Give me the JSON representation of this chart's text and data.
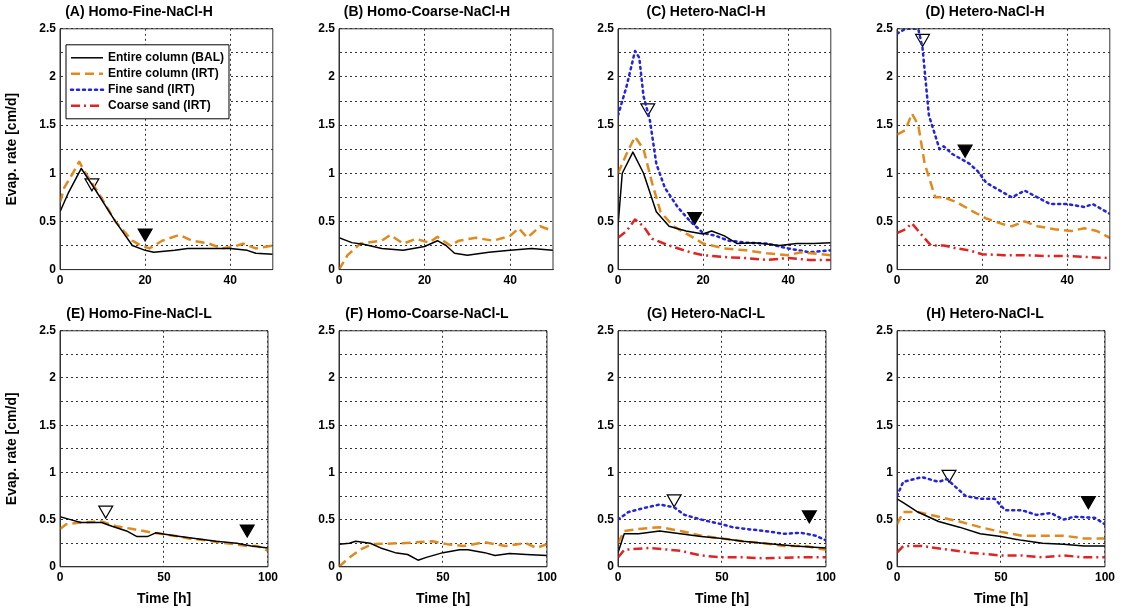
{
  "chart_data": [
    {
      "type": "line",
      "title": "(A) Homo-Fine-NaCl-H",
      "ylabel": "Evap. rate [cm/d]",
      "xlim": [
        0,
        50
      ],
      "xticks": [
        0,
        20,
        40
      ],
      "ylim": [
        0,
        2.5
      ],
      "yticks": [
        0,
        {
          "value": 0.25,
          "label": null
        },
        0.5,
        {
          "value": 0.75,
          "label": null
        },
        1,
        {
          "value": 1.25,
          "label": null
        },
        1.5,
        {
          "value": 1.75,
          "label": null
        },
        2,
        {
          "value": 2.25,
          "label": null
        },
        2.5
      ],
      "grid": true,
      "legend": "top left",
      "marker": "none",
      "series": [
        {
          "name": "Entire column (BAL)",
          "color": "#000000",
          "line_style": "solid",
          "x": [
            0,
            2,
            5,
            8,
            13,
            17,
            20,
            22,
            27,
            30,
            35,
            40,
            44,
            46,
            50
          ],
          "values": [
            0.6,
            0.8,
            1.05,
            0.85,
            0.5,
            0.25,
            0.2,
            0.18,
            0.2,
            0.22,
            0.22,
            0.22,
            0.2,
            0.17,
            0.16
          ]
        },
        {
          "name": "Entire column (IRT)",
          "color": "#e08a1e",
          "line_style": "dashed",
          "x": [
            0,
            1,
            3,
            4.5,
            6,
            9,
            13,
            17,
            19,
            21,
            24,
            28,
            31,
            35,
            38,
            41,
            43,
            46,
            50
          ],
          "values": [
            0.7,
            0.85,
            1.0,
            1.12,
            1.0,
            0.8,
            0.5,
            0.3,
            0.25,
            0.22,
            0.3,
            0.36,
            0.3,
            0.27,
            0.22,
            0.24,
            0.27,
            0.22,
            0.25
          ]
        },
        {
          "name": "Fine sand (IRT)",
          "color": "#2323e0",
          "line_style": "dotted"
        },
        {
          "name": "Coarse sand (IRT)",
          "color": "#e02323",
          "line_style": "dashdot"
        },
        {
          "type": "scatter",
          "marker": "triangle",
          "color": "#ffffff",
          "x": [
            7.5
          ],
          "values": [
            0.9
          ]
        },
        {
          "type": "scatter",
          "marker": "triangle",
          "color": "#000000",
          "x": [
            20
          ],
          "values": [
            0.38
          ]
        }
      ]
    },
    {
      "type": "line",
      "title": "(B) Homo-Coarse-NaCl-H",
      "xlim": [
        0,
        50
      ],
      "xticks": [
        0,
        20,
        40
      ],
      "ylim": [
        0,
        2.5
      ],
      "yticks": [
        0,
        {
          "value": 0.25,
          "label": null
        },
        0.5,
        {
          "value": 0.75,
          "label": null
        },
        1,
        {
          "value": 1.25,
          "label": null
        },
        1.5,
        {
          "value": 1.75,
          "label": null
        },
        2,
        {
          "value": 2.25,
          "label": null
        },
        2.5
      ],
      "grid": true,
      "marker": "none",
      "series": [
        {
          "color": "#000000",
          "line_style": "solid",
          "x": [
            0,
            3,
            6,
            10,
            15,
            20,
            23,
            25,
            27,
            30,
            35,
            40,
            45,
            50
          ],
          "values": [
            0.33,
            0.28,
            0.26,
            0.22,
            0.2,
            0.24,
            0.3,
            0.25,
            0.17,
            0.15,
            0.18,
            0.2,
            0.22,
            0.2
          ]
        },
        {
          "color": "#e08a1e",
          "line_style": "dashed",
          "x": [
            0,
            2,
            5,
            10,
            12,
            15,
            18,
            21,
            23,
            26,
            28,
            32,
            36,
            40,
            42,
            44,
            47,
            50
          ],
          "values": [
            0,
            0.15,
            0.27,
            0.3,
            0.36,
            0.27,
            0.32,
            0.28,
            0.34,
            0.25,
            0.3,
            0.33,
            0.3,
            0.35,
            0.43,
            0.33,
            0.45,
            0.4
          ]
        }
      ]
    },
    {
      "type": "line",
      "title": "(C) Hetero-NaCl-H",
      "xlim": [
        0,
        50
      ],
      "xticks": [
        0,
        20,
        40
      ],
      "ylim": [
        0,
        2.5
      ],
      "yticks": [
        0,
        {
          "value": 0.25,
          "label": null
        },
        0.5,
        {
          "value": 0.75,
          "label": null
        },
        1,
        {
          "value": 1.25,
          "label": null
        },
        1.5,
        {
          "value": 1.75,
          "label": null
        },
        2,
        {
          "value": 2.25,
          "label": null
        },
        2.5
      ],
      "grid": true,
      "marker": "none",
      "series": [
        {
          "color": "#000000",
          "line_style": "solid",
          "x": [
            0,
            1,
            3.5,
            6,
            9,
            12,
            16,
            20,
            22,
            25,
            28,
            32,
            38,
            42,
            46,
            50
          ],
          "values": [
            0.45,
            1.0,
            1.22,
            1.0,
            0.6,
            0.45,
            0.4,
            0.37,
            0.4,
            0.35,
            0.27,
            0.28,
            0.25,
            0.27,
            0.27,
            0.28
          ]
        },
        {
          "color": "#e08a1e",
          "line_style": "dashed",
          "x": [
            0,
            2,
            4,
            6,
            8,
            10,
            13,
            17,
            20,
            25,
            30,
            35,
            40,
            43,
            50
          ],
          "values": [
            1.0,
            1.2,
            1.38,
            1.25,
            0.9,
            0.6,
            0.45,
            0.35,
            0.27,
            0.22,
            0.2,
            0.17,
            0.15,
            0.18,
            0.15
          ]
        },
        {
          "color": "#2323e0",
          "line_style": "dotted",
          "x": [
            0,
            2,
            4,
            5,
            6,
            7.5,
            9,
            11,
            14,
            17,
            20,
            23,
            26,
            30,
            35,
            40,
            45,
            50
          ],
          "values": [
            1.6,
            1.9,
            2.27,
            2.2,
            1.8,
            1.55,
            1.1,
            0.85,
            0.65,
            0.5,
            0.38,
            0.35,
            0.3,
            0.28,
            0.27,
            0.22,
            0.18,
            0.2
          ]
        },
        {
          "color": "#e02323",
          "line_style": "dashdot",
          "x": [
            0,
            2,
            4,
            6,
            8,
            12,
            17,
            20,
            25,
            30,
            35,
            40,
            45,
            50
          ],
          "values": [
            0.33,
            0.4,
            0.52,
            0.45,
            0.32,
            0.25,
            0.18,
            0.15,
            0.13,
            0.12,
            0.1,
            0.12,
            0.1,
            0.1
          ]
        },
        {
          "type": "scatter",
          "marker": "triangle",
          "color": "#ffffff",
          "x": [
            7
          ],
          "values": [
            1.68
          ]
        },
        {
          "type": "scatter",
          "marker": "triangle",
          "color": "#000000",
          "x": [
            18
          ],
          "values": [
            0.55
          ]
        }
      ]
    },
    {
      "type": "line",
      "title": "(D) Hetero-NaCl-H",
      "xlim": [
        0,
        50
      ],
      "xticks": [
        0,
        20,
        40
      ],
      "ylim": [
        0,
        2.5
      ],
      "yticks": [
        0,
        {
          "value": 0.25,
          "label": null
        },
        0.5,
        {
          "value": 0.75,
          "label": null
        },
        1,
        {
          "value": 1.25,
          "label": null
        },
        1.5,
        {
          "value": 1.75,
          "label": null
        },
        2,
        {
          "value": 2.25,
          "label": null
        },
        2.5
      ],
      "grid": true,
      "marker": "none",
      "series": [
        {
          "color": "#e08a1e",
          "line_style": "dashed",
          "x": [
            0,
            2,
            3.5,
            5,
            6.5,
            9,
            11,
            14,
            18,
            21,
            25,
            27,
            30,
            33,
            37,
            41,
            44,
            47,
            50
          ],
          "values": [
            1.4,
            1.45,
            1.62,
            1.5,
            1.1,
            0.75,
            0.75,
            0.7,
            0.6,
            0.53,
            0.47,
            0.45,
            0.5,
            0.45,
            0.42,
            0.4,
            0.43,
            0.4,
            0.33
          ]
        },
        {
          "color": "#2323e0",
          "line_style": "dotted",
          "x": [
            0,
            2,
            5,
            6,
            7.5,
            10,
            11,
            13,
            17,
            19,
            21,
            25,
            27,
            30,
            33,
            36,
            40,
            44,
            46,
            50
          ],
          "values": [
            2.45,
            2.5,
            2.5,
            2.3,
            1.6,
            1.25,
            1.28,
            1.2,
            1.1,
            1.02,
            0.9,
            0.8,
            0.75,
            0.82,
            0.75,
            0.68,
            0.68,
            0.65,
            0.68,
            0.58
          ]
        },
        {
          "color": "#e02323",
          "line_style": "dashdot",
          "x": [
            0,
            2,
            3.5,
            6,
            8,
            11,
            14,
            17,
            20,
            25,
            30,
            35,
            40,
            45,
            50
          ],
          "values": [
            0.38,
            0.42,
            0.48,
            0.35,
            0.25,
            0.25,
            0.22,
            0.2,
            0.16,
            0.15,
            0.15,
            0.14,
            0.14,
            0.13,
            0.12
          ]
        },
        {
          "type": "scatter",
          "marker": "triangle",
          "color": "#ffffff",
          "x": [
            6
          ],
          "values": [
            2.4
          ]
        },
        {
          "type": "scatter",
          "marker": "triangle",
          "color": "#000000",
          "x": [
            16
          ],
          "values": [
            1.25
          ]
        }
      ]
    },
    {
      "type": "line",
      "title": "(E) Homo-Fine-NaCl-L",
      "ylabel": "Evap. rate [cm/d]",
      "xlabel": "Time [h]",
      "xlim": [
        0,
        100
      ],
      "xticks": [
        0,
        50,
        100
      ],
      "ylim": [
        0,
        2.5
      ],
      "yticks": [
        0,
        {
          "value": 0.25,
          "label": null
        },
        0.5,
        {
          "value": 0.75,
          "label": null
        },
        1,
        {
          "value": 1.25,
          "label": null
        },
        1.5,
        {
          "value": 1.75,
          "label": null
        },
        2,
        {
          "value": 2.25,
          "label": null
        },
        2.5
      ],
      "grid": true,
      "marker": "none",
      "series": [
        {
          "color": "#000000",
          "line_style": "solid",
          "x": [
            0,
            5,
            10,
            20,
            25,
            32,
            37,
            42,
            46,
            55,
            65,
            75,
            85,
            92,
            100
          ],
          "values": [
            0.53,
            0.5,
            0.47,
            0.47,
            0.43,
            0.38,
            0.32,
            0.32,
            0.36,
            0.33,
            0.3,
            0.27,
            0.25,
            0.22,
            0.2
          ]
        },
        {
          "color": "#e08a1e",
          "line_style": "dashed",
          "x": [
            0,
            3,
            10,
            20,
            27,
            35,
            45,
            55,
            62,
            70,
            80,
            90,
            95,
            100
          ],
          "values": [
            0.4,
            0.45,
            0.47,
            0.48,
            0.43,
            0.4,
            0.36,
            0.33,
            0.3,
            0.28,
            0.25,
            0.22,
            0.22,
            0.17
          ]
        },
        {
          "type": "scatter",
          "marker": "triangle",
          "color": "#ffffff",
          "x": [
            22
          ],
          "values": [
            0.6
          ]
        },
        {
          "type": "scatter",
          "marker": "triangle",
          "color": "#000000",
          "x": [
            90
          ],
          "values": [
            0.4
          ]
        }
      ]
    },
    {
      "type": "line",
      "title": "(F) Homo-Coarse-NaCl-L",
      "xlabel": "Time [h]",
      "xlim": [
        0,
        100
      ],
      "xticks": [
        0,
        50,
        100
      ],
      "ylim": [
        0,
        2.5
      ],
      "yticks": [
        0,
        {
          "value": 0.25,
          "label": null
        },
        0.5,
        {
          "value": 0.75,
          "label": null
        },
        1,
        {
          "value": 1.25,
          "label": null
        },
        1.5,
        {
          "value": 1.75,
          "label": null
        },
        2,
        {
          "value": 2.25,
          "label": null
        },
        2.5
      ],
      "grid": true,
      "marker": "none",
      "series": [
        {
          "color": "#000000",
          "line_style": "solid",
          "x": [
            0,
            5,
            8,
            15,
            20,
            27,
            33,
            38,
            42,
            50,
            58,
            62,
            70,
            75,
            82,
            90,
            100
          ],
          "values": [
            0.24,
            0.25,
            0.27,
            0.25,
            0.2,
            0.15,
            0.13,
            0.07,
            0.1,
            0.15,
            0.18,
            0.18,
            0.15,
            0.12,
            0.14,
            0.13,
            0.12
          ]
        },
        {
          "color": "#e08a1e",
          "line_style": "dashed",
          "x": [
            0,
            4,
            10,
            16,
            30,
            45,
            52,
            60,
            70,
            80,
            90,
            95,
            100
          ],
          "values": [
            0,
            0.08,
            0.18,
            0.24,
            0.25,
            0.27,
            0.24,
            0.22,
            0.26,
            0.22,
            0.25,
            0.2,
            0.24
          ]
        }
      ]
    },
    {
      "type": "line",
      "title": "(G) Hetero-NaCl-L",
      "xlabel": "Time [h]",
      "xlim": [
        0,
        100
      ],
      "xticks": [
        0,
        50,
        100
      ],
      "ylim": [
        0,
        2.5
      ],
      "yticks": [
        0,
        {
          "value": 0.25,
          "label": null
        },
        0.5,
        {
          "value": 0.75,
          "label": null
        },
        1,
        {
          "value": 1.25,
          "label": null
        },
        1.5,
        {
          "value": 1.75,
          "label": null
        },
        2,
        {
          "value": 2.25,
          "label": null
        },
        2.5
      ],
      "grid": true,
      "marker": "none",
      "series": [
        {
          "color": "#000000",
          "line_style": "solid",
          "x": [
            0,
            3,
            10,
            20,
            30,
            40,
            50,
            60,
            70,
            85,
            100
          ],
          "values": [
            0.15,
            0.35,
            0.35,
            0.38,
            0.35,
            0.32,
            0.3,
            0.27,
            0.25,
            0.22,
            0.2
          ]
        },
        {
          "color": "#e08a1e",
          "line_style": "dashed",
          "x": [
            0,
            3,
            10,
            20,
            30,
            40,
            50,
            60,
            70,
            80,
            90,
            100
          ],
          "values": [
            0.25,
            0.38,
            0.4,
            0.42,
            0.38,
            0.33,
            0.3,
            0.27,
            0.25,
            0.22,
            0.22,
            0.18
          ]
        },
        {
          "color": "#2323e0",
          "line_style": "dotted",
          "x": [
            0,
            5,
            12,
            20,
            27,
            32,
            40,
            50,
            55,
            62,
            70,
            80,
            88,
            95,
            100
          ],
          "values": [
            0.5,
            0.58,
            0.62,
            0.66,
            0.63,
            0.55,
            0.5,
            0.45,
            0.42,
            0.4,
            0.38,
            0.35,
            0.36,
            0.33,
            0.28
          ]
        },
        {
          "color": "#e02323",
          "line_style": "dashdot",
          "x": [
            0,
            3,
            15,
            30,
            40,
            50,
            60,
            70,
            85,
            100
          ],
          "values": [
            0.1,
            0.18,
            0.2,
            0.17,
            0.12,
            0.1,
            0.1,
            0.09,
            0.1,
            0.1
          ]
        },
        {
          "type": "scatter",
          "marker": "triangle",
          "color": "#ffffff",
          "x": [
            27
          ],
          "values": [
            0.72
          ]
        },
        {
          "type": "scatter",
          "marker": "triangle",
          "color": "#000000",
          "x": [
            92
          ],
          "values": [
            0.55
          ]
        }
      ]
    },
    {
      "type": "line",
      "title": "(H) Hetero-NaCl-L",
      "xlabel": "Time [h]",
      "xlim": [
        0,
        100
      ],
      "xticks": [
        0,
        50,
        100
      ],
      "ylim": [
        0,
        2.5
      ],
      "yticks": [
        0,
        {
          "value": 0.25,
          "label": null
        },
        0.5,
        {
          "value": 0.75,
          "label": null
        },
        1,
        {
          "value": 1.25,
          "label": null
        },
        1.5,
        {
          "value": 1.75,
          "label": null
        },
        2,
        {
          "value": 2.25,
          "label": null
        },
        2.5
      ],
      "grid": true,
      "marker": "none",
      "series": [
        {
          "color": "#000000",
          "line_style": "solid",
          "x": [
            0,
            3,
            10,
            20,
            30,
            40,
            50,
            60,
            70,
            80,
            90,
            100
          ],
          "values": [
            0.72,
            0.68,
            0.58,
            0.48,
            0.42,
            0.35,
            0.32,
            0.28,
            0.25,
            0.24,
            0.22,
            0.22
          ]
        },
        {
          "color": "#e08a1e",
          "line_style": "dashed",
          "x": [
            0,
            3,
            10,
            20,
            30,
            40,
            50,
            60,
            70,
            80,
            90,
            100
          ],
          "values": [
            0.45,
            0.58,
            0.58,
            0.53,
            0.48,
            0.42,
            0.37,
            0.33,
            0.33,
            0.33,
            0.3,
            0.3
          ]
        },
        {
          "color": "#2323e0",
          "line_style": "dotted",
          "x": [
            0,
            3,
            12,
            20,
            24,
            28,
            33,
            40,
            47,
            52,
            60,
            67,
            74,
            80,
            85,
            95,
            100
          ],
          "values": [
            0.75,
            0.9,
            0.95,
            0.9,
            0.93,
            0.85,
            0.75,
            0.72,
            0.72,
            0.6,
            0.6,
            0.55,
            0.57,
            0.5,
            0.53,
            0.52,
            0.45
          ]
        },
        {
          "color": "#e02323",
          "line_style": "dashdot",
          "x": [
            0,
            3,
            12,
            25,
            35,
            50,
            60,
            70,
            80,
            90,
            100
          ],
          "values": [
            0.15,
            0.22,
            0.22,
            0.18,
            0.15,
            0.12,
            0.12,
            0.1,
            0.12,
            0.1,
            0.1
          ]
        },
        {
          "type": "scatter",
          "marker": "triangle",
          "color": "#ffffff",
          "x": [
            25
          ],
          "values": [
            0.98
          ]
        },
        {
          "type": "scatter",
          "marker": "triangle",
          "color": "#000000",
          "x": [
            92
          ],
          "values": [
            0.7
          ]
        }
      ]
    }
  ]
}
